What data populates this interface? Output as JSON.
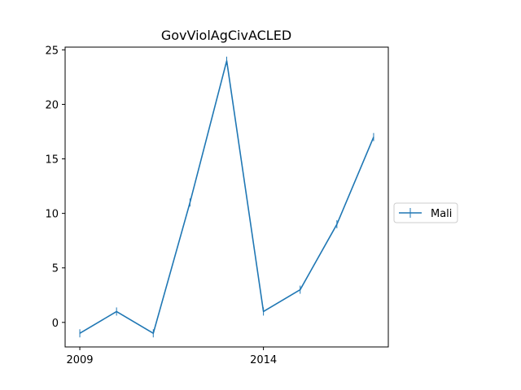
{
  "chart_data": {
    "type": "line",
    "title": "GovViolAgCivACLED",
    "xlabel": "",
    "ylabel": "",
    "x": [
      2009,
      2010,
      2011,
      2012,
      2013,
      2014,
      2015,
      2016,
      2017
    ],
    "series": [
      {
        "name": "Mali",
        "values": [
          -1,
          1,
          -1,
          11,
          24,
          1,
          3,
          9,
          17
        ],
        "color": "#1f77b4",
        "marker": "vline"
      }
    ],
    "xlim": [
      2008.6,
      2017.4
    ],
    "ylim": [
      -2.25,
      25.25
    ],
    "xticks": [
      2009,
      2014
    ],
    "yticks": [
      0,
      5,
      10,
      15,
      20,
      25
    ],
    "grid": false,
    "legend_position": "outside-right"
  }
}
